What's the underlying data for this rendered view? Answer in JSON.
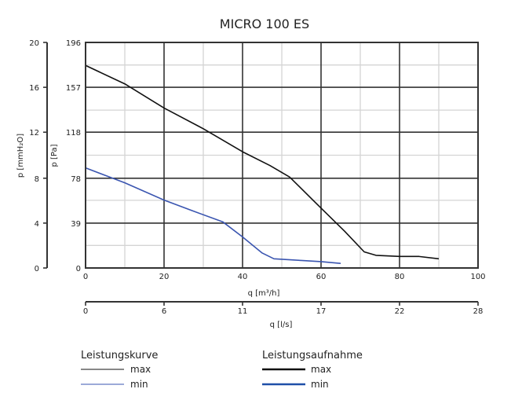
{
  "chart_data": {
    "type": "line",
    "title": "MICRO 100 ES",
    "xlabel": "q [m³/h]",
    "xlim": [
      0,
      100
    ],
    "xticks": [
      0,
      20,
      40,
      60,
      80,
      100
    ],
    "x2label": "q [l/s]",
    "x2ticks": [
      "0",
      "6",
      "11",
      "17",
      "22",
      "28"
    ],
    "ylabel": "p [Pa]",
    "ylim": [
      0,
      196
    ],
    "yticks": [
      0,
      39,
      78,
      118,
      157,
      196
    ],
    "y2label": "p [mmH₂O]",
    "y2ticks": [
      "0",
      "4",
      "8",
      "12",
      "16",
      "20"
    ],
    "grid": true,
    "series": [
      {
        "name": "max",
        "color": "#111111",
        "x": [
          0,
          10,
          20,
          30,
          40,
          47,
          52,
          60,
          66,
          71,
          74,
          80,
          85,
          90
        ],
        "y": [
          176,
          160,
          139,
          121,
          101,
          89,
          79,
          52,
          32,
          14,
          11,
          10,
          10,
          8
        ]
      },
      {
        "name": "min",
        "color": "#3a55b0",
        "x": [
          0,
          10,
          20,
          27,
          35,
          40,
          45,
          48,
          55,
          60,
          65
        ],
        "y": [
          87,
          74,
          59,
          50,
          40,
          27,
          13,
          8,
          6.5,
          5.5,
          4
        ]
      }
    ],
    "legend": {
      "placement": "bottom",
      "group1": {
        "title": "Leistungskurve",
        "items": [
          {
            "label": "max",
            "color": "#111111"
          },
          {
            "label": "min",
            "color": "#3a55b0"
          }
        ]
      },
      "group2": {
        "title": "Leistungsaufnahme",
        "items": [
          {
            "label": "max",
            "color": "#111111"
          },
          {
            "label": "min",
            "color": "#1f4fa8"
          }
        ]
      }
    }
  }
}
